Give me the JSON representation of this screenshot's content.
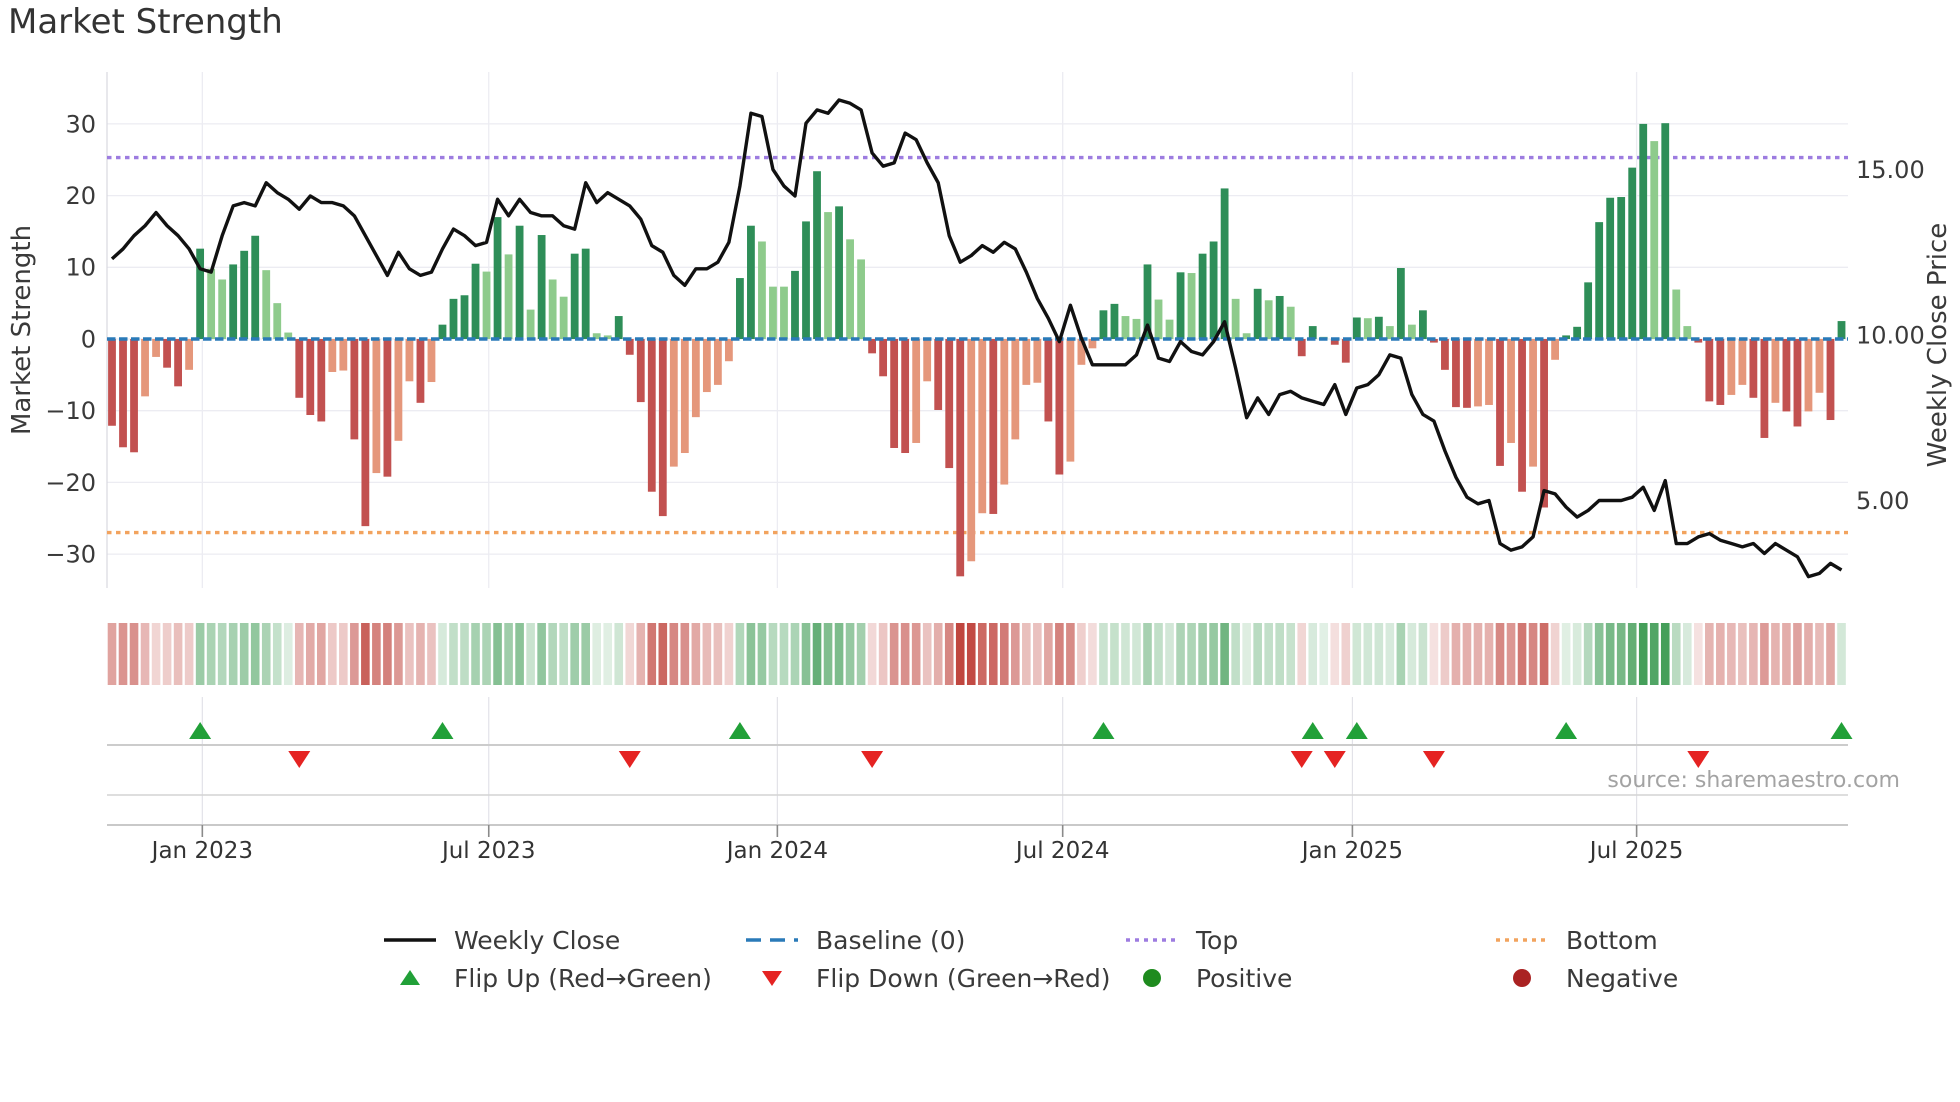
{
  "title": "Market Strength",
  "source": "source: sharemaestro.com",
  "axes": {
    "left": {
      "label": "Market Strength",
      "ticks": [
        {
          "label": "30",
          "value": 30
        },
        {
          "label": "20",
          "value": 20
        },
        {
          "label": "10",
          "value": 10
        },
        {
          "label": "0",
          "value": 0
        },
        {
          "label": "−10",
          "value": -10
        },
        {
          "label": "−20",
          "value": -20
        },
        {
          "label": "−30",
          "value": -30
        }
      ]
    },
    "right": {
      "label": "Weekly Close Price",
      "ticks": [
        {
          "label": "15.00",
          "value": 15
        },
        {
          "label": "10.00",
          "value": 10
        },
        {
          "label": "5.00",
          "value": 5
        }
      ]
    },
    "x": {
      "ticks": [
        {
          "label": "Jan 2023",
          "week": 8.2
        },
        {
          "label": "Jul 2023",
          "week": 34.2
        },
        {
          "label": "Jan 2024",
          "week": 60.4
        },
        {
          "label": "Jul 2024",
          "week": 86.3
        },
        {
          "label": "Jan 2025",
          "week": 112.6
        },
        {
          "label": "Jul 2025",
          "week": 138.4
        }
      ]
    }
  },
  "colors": {
    "positive_strong": "#2e8e58",
    "positive_weak": "#8ecb8c",
    "negative_strong": "#c25150",
    "negative_weak": "#e5977b",
    "heat_green": "#3c9a52",
    "heat_red": "#c0463f",
    "weekly_close_line": "#111111",
    "baseline": "#2a7ab8",
    "top_line": "#9d7ce0",
    "bottom_line": "#f2a35e",
    "flip_up": "#21a038",
    "flip_down": "#e52322",
    "positive_dot": "#1e8b1e",
    "negative_dot": "#aa2222",
    "grid": "#ececf2",
    "tick_text": "#3a3a3a"
  },
  "legend": {
    "rows": [
      [
        {
          "name": "weekly-close",
          "label": "Weekly Close",
          "swatch": "line",
          "color": "#111111"
        },
        {
          "name": "baseline",
          "label": "Baseline (0)",
          "swatch": "dashes",
          "color": "#2a7ab8"
        },
        {
          "name": "top",
          "label": "Top",
          "swatch": "dots",
          "color": "#9d7ce0"
        },
        {
          "name": "bottom",
          "label": "Bottom",
          "swatch": "dots",
          "color": "#f2a35e"
        }
      ],
      [
        {
          "name": "flip-up",
          "label": "Flip Up (Red→Green)",
          "swatch": "triangle-up",
          "color": "#21a038"
        },
        {
          "name": "flip-down",
          "label": "Flip Down (Green→Red)",
          "swatch": "triangle-down",
          "color": "#e52322"
        },
        {
          "name": "positive",
          "label": "Positive",
          "swatch": "dot",
          "color": "#1e8b1e"
        },
        {
          "name": "negative",
          "label": "Negative",
          "swatch": "dot",
          "color": "#aa2222"
        }
      ]
    ]
  },
  "chart_data": {
    "type": "composite (weekly bar + line overlay + heatmap strip + flip markers)",
    "title": "Market Strength",
    "weeks": 158,
    "x_range_weekly": "Nov 2022 – Oct 2025",
    "left_axis": {
      "label": "Market Strength",
      "ylim": [
        -37,
        35
      ],
      "gridlines": [
        30,
        20,
        10,
        0,
        -10,
        -20,
        -30
      ]
    },
    "right_axis": {
      "label": "Weekly Close Price",
      "tick_values": [
        15,
        10,
        5
      ]
    },
    "reference_lines": {
      "baseline": 0,
      "top": 25.3,
      "bottom": -27.0
    },
    "strength_bars": {
      "note": "weekly market-strength histogram; dark shade = momentum strengthening or sign flip, light shade = weakening; same values drive the heatmap strip",
      "values": [
        -12.1,
        -15.1,
        -15.8,
        -8.0,
        -2.5,
        -4.0,
        -6.6,
        -4.3,
        12.6,
        9.8,
        8.3,
        10.4,
        12.3,
        14.4,
        9.6,
        5.0,
        0.9,
        -8.2,
        -10.6,
        -11.5,
        -4.6,
        -4.4,
        -14.0,
        -26.1,
        -18.7,
        -19.2,
        -14.2,
        -5.9,
        -8.9,
        -6.0,
        2.0,
        5.6,
        6.1,
        10.5,
        9.4,
        17.0,
        11.8,
        15.8,
        4.1,
        14.5,
        8.3,
        5.9,
        11.9,
        12.6,
        0.8,
        0.5,
        3.2,
        -2.2,
        -8.8,
        -21.3,
        -24.7,
        -17.8,
        -15.9,
        -10.9,
        -7.4,
        -6.4,
        -3.1,
        8.5,
        15.8,
        13.6,
        7.3,
        7.3,
        9.5,
        16.4,
        23.4,
        17.7,
        18.5,
        13.9,
        11.1,
        -2.0,
        -5.2,
        -15.2,
        -15.9,
        -14.5,
        -5.9,
        -9.9,
        -18.0,
        -33.1,
        -31.0,
        -24.3,
        -24.4,
        -20.3,
        -14.0,
        -6.4,
        -6.1,
        -11.5,
        -18.9,
        -17.1,
        -3.6,
        -1.3,
        4.0,
        4.9,
        3.2,
        2.8,
        10.4,
        5.5,
        2.7,
        9.3,
        9.2,
        11.9,
        13.6,
        21.0,
        5.6,
        0.8,
        7.0,
        5.4,
        6.0,
        4.5,
        -2.4,
        1.8,
        0.3,
        -0.8,
        -3.3,
        3.0,
        2.9,
        3.1,
        1.8,
        9.9,
        2.0,
        4.0,
        -0.5,
        -4.3,
        -9.5,
        -9.6,
        -9.4,
        -9.2,
        -17.7,
        -14.5,
        -21.3,
        -17.8,
        -23.5,
        -2.9,
        0.5,
        1.7,
        7.9,
        16.3,
        19.7,
        19.8,
        23.9,
        30.0,
        27.6,
        30.1,
        6.9,
        1.8,
        -0.5,
        -8.7,
        -9.2,
        -7.8,
        -6.4,
        -8.2,
        -13.8,
        -8.9,
        -10.1,
        -12.2,
        -10.1,
        -7.5,
        -11.3,
        2.5
      ]
    },
    "weekly_close_line": {
      "note": "black line, right axis (price)",
      "values": [
        12.3,
        12.6,
        13.0,
        13.3,
        13.7,
        13.3,
        13.0,
        12.6,
        12.0,
        11.9,
        13.0,
        13.9,
        14.0,
        13.9,
        14.6,
        14.3,
        14.1,
        13.8,
        14.2,
        14.0,
        14.0,
        13.9,
        13.6,
        13.0,
        12.4,
        11.8,
        12.5,
        12.0,
        11.8,
        11.9,
        12.6,
        13.2,
        13.0,
        12.7,
        12.8,
        14.1,
        13.6,
        14.1,
        13.7,
        13.6,
        13.6,
        13.3,
        13.2,
        14.6,
        14.0,
        14.3,
        14.1,
        13.9,
        13.5,
        12.7,
        12.5,
        11.8,
        11.5,
        12.0,
        12.0,
        12.2,
        12.8,
        14.5,
        16.7,
        16.6,
        15.0,
        14.5,
        14.2,
        16.4,
        16.8,
        16.7,
        17.1,
        17.0,
        16.8,
        15.5,
        15.1,
        15.2,
        16.1,
        15.9,
        15.2,
        14.6,
        13.0,
        12.2,
        12.4,
        12.7,
        12.5,
        12.8,
        12.6,
        11.9,
        11.1,
        10.5,
        9.8,
        10.9,
        9.9,
        9.1,
        9.1,
        9.1,
        9.1,
        9.4,
        10.3,
        9.3,
        9.2,
        9.8,
        9.5,
        9.4,
        9.8,
        10.4,
        9.0,
        7.5,
        8.1,
        7.6,
        8.2,
        8.3,
        8.1,
        8.0,
        7.9,
        8.5,
        7.6,
        8.4,
        8.5,
        8.8,
        9.4,
        9.3,
        8.2,
        7.6,
        7.4,
        6.5,
        5.7,
        5.1,
        4.9,
        5.0,
        3.7,
        3.5,
        3.6,
        3.9,
        5.3,
        5.2,
        4.8,
        4.5,
        4.7,
        5.0,
        5.0,
        5.0,
        5.1,
        5.4,
        4.7,
        5.6,
        3.7,
        3.7,
        3.9,
        4.0,
        3.8,
        3.7,
        3.6,
        3.7,
        3.4,
        3.7,
        3.5,
        3.3,
        2.7,
        2.8,
        3.1,
        2.9
      ]
    },
    "flip_up_weeks": [
      8,
      30,
      57,
      90,
      109,
      113,
      132,
      157
    ],
    "flip_down_weeks": [
      17,
      47,
      69,
      108,
      111,
      120,
      144
    ],
    "legend_entries": [
      "Weekly Close",
      "Baseline (0)",
      "Top",
      "Bottom",
      "Flip Up (Red→Green)",
      "Flip Down (Green→Red)",
      "Positive",
      "Negative"
    ]
  }
}
